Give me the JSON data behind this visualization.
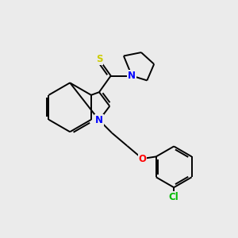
{
  "background_color": "#ebebeb",
  "bond_color": "#000000",
  "atom_colors": {
    "N": "#0000ff",
    "S": "#cccc00",
    "O": "#ff0000",
    "Cl": "#00bb00",
    "C": "#000000"
  },
  "figsize": [
    3.0,
    3.0
  ],
  "dpi": 100,
  "lw": 1.4
}
